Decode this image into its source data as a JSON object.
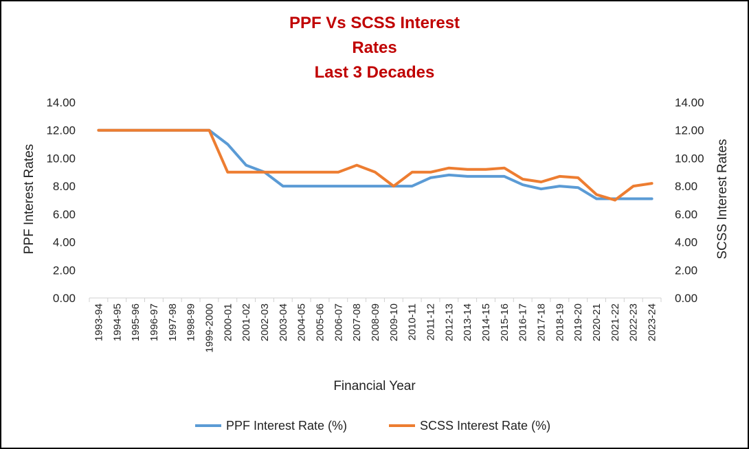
{
  "chart_data": {
    "type": "line",
    "title": [
      "PPF Vs SCSS Interest",
      "Rates",
      "Last 3 Decades"
    ],
    "xlabel": "Financial Year",
    "ylabel": "PPF Interest Rates",
    "y2label": "SCSS Interest Rates",
    "ylim": [
      0,
      14
    ],
    "y2lim": [
      0,
      14
    ],
    "yticks": [
      "0.00",
      "2.00",
      "4.00",
      "6.00",
      "8.00",
      "10.00",
      "12.00",
      "14.00"
    ],
    "grid": false,
    "legend_position": "bottom",
    "categories": [
      "1993-94",
      "1994-95",
      "1995-96",
      "1996-97",
      "1997-98",
      "1998-99",
      "1999-2000",
      "2000-01",
      "2001-02",
      "2002-03",
      "2003-04",
      "2004-05",
      "2005-06",
      "2006-07",
      "2007-08",
      "2008-09",
      "2009-10",
      "2010-11",
      "2011-12",
      "2012-13",
      "2013-14",
      "2014-15",
      "2015-16",
      "2016-17",
      "2017-18",
      "2018-19",
      "2019-20",
      "2020-21",
      "2021-22",
      "2022-23",
      "2023-24"
    ],
    "series": [
      {
        "name": "PPF Interest Rate (%)",
        "color": "#5b9bd5",
        "axis": "left",
        "values": [
          12,
          12,
          12,
          12,
          12,
          12,
          12,
          11,
          9.5,
          9,
          8,
          8,
          8,
          8,
          8,
          8,
          8,
          8,
          8.6,
          8.8,
          8.7,
          8.7,
          8.7,
          8.1,
          7.8,
          8,
          7.9,
          7.1,
          7.1,
          7.1,
          7.1
        ]
      },
      {
        "name": "SCSS Interest Rate (%)",
        "color": "#ed7d31",
        "axis": "right",
        "values": [
          12,
          12,
          12,
          12,
          12,
          12,
          12,
          9,
          9,
          9,
          9,
          9,
          9,
          9,
          9.5,
          9,
          8,
          9,
          9,
          9.3,
          9.2,
          9.2,
          9.3,
          8.5,
          8.3,
          8.7,
          8.6,
          7.4,
          7,
          8,
          8.2
        ]
      }
    ]
  }
}
